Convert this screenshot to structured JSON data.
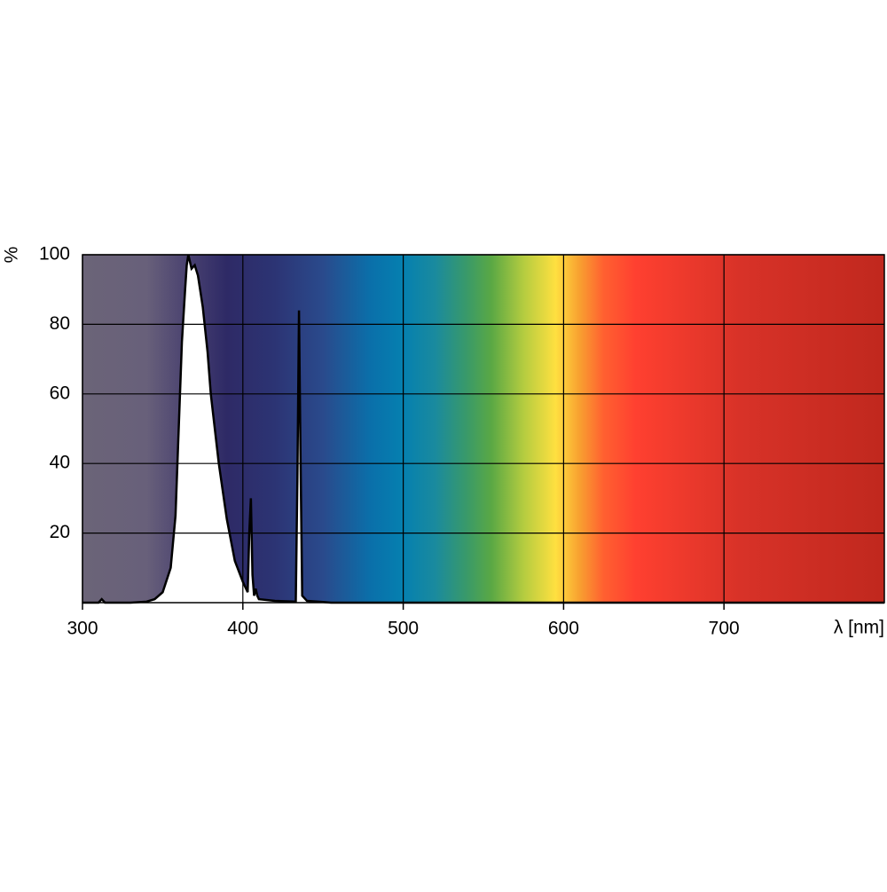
{
  "chart_data": {
    "type": "area",
    "x_label": "λ [nm]",
    "y_label": "%",
    "x": [
      300,
      310,
      312,
      314,
      330,
      340,
      345,
      350,
      355,
      358,
      360,
      362,
      364,
      365,
      366,
      368,
      370,
      372,
      375,
      378,
      380,
      385,
      390,
      395,
      400,
      403,
      404,
      405,
      406,
      407,
      408,
      409,
      410,
      420,
      433,
      434,
      435,
      436,
      437,
      440,
      450,
      455,
      800
    ],
    "values": [
      0,
      0,
      1,
      0,
      0,
      0.3,
      1,
      3,
      10,
      25,
      50,
      75,
      90,
      97,
      100,
      96,
      97,
      94,
      85,
      72,
      60,
      40,
      24,
      12,
      6,
      3,
      20,
      30,
      8,
      2,
      4,
      2,
      1,
      0.5,
      0.3,
      35,
      84,
      40,
      2,
      0.5,
      0.2,
      0,
      0
    ],
    "color": "#000000",
    "fill": "#ffffff",
    "xlim": [
      300,
      800
    ],
    "xticks": [
      300,
      400,
      500,
      600,
      700
    ],
    "ylim": [
      0,
      100
    ],
    "yticks": [
      20,
      40,
      60,
      80,
      100
    ],
    "grid": true
  }
}
